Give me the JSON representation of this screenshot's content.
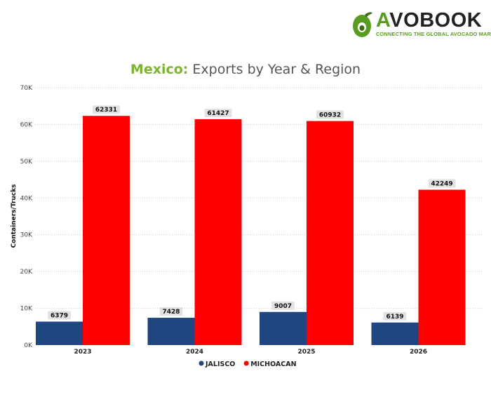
{
  "brand": {
    "name_a": "A",
    "name_rest": "VOBOOK",
    "tagline": "CONNECTING THE GLOBAL AVOCADO MARKET",
    "colors": {
      "green": "#5a9c1f",
      "dark": "#222222"
    },
    "icon": "avocado-icon"
  },
  "title": {
    "country": "Mexico:",
    "rest": " Exports by Year & Region"
  },
  "chart_data": {
    "type": "bar",
    "title": "Mexico: Exports by Year & Region",
    "xlabel": "",
    "ylabel": "Containers/Trucks",
    "categories": [
      "2023",
      "2024",
      "2025",
      "2026"
    ],
    "ylim": [
      0,
      70000
    ],
    "yticks": [
      0,
      10000,
      20000,
      30000,
      40000,
      50000,
      60000,
      70000
    ],
    "ytick_labels": [
      "0K",
      "10K",
      "20K",
      "30K",
      "40K",
      "50K",
      "60K",
      "70K"
    ],
    "grid": true,
    "legend": "bottom-center",
    "series": [
      {
        "name": "JALISCO",
        "color": "#1f4680",
        "values": [
          6379,
          7428,
          9007,
          6139
        ]
      },
      {
        "name": "MICHOACAN",
        "color": "#ff0000",
        "values": [
          62331,
          61427,
          60932,
          42249
        ]
      }
    ]
  }
}
